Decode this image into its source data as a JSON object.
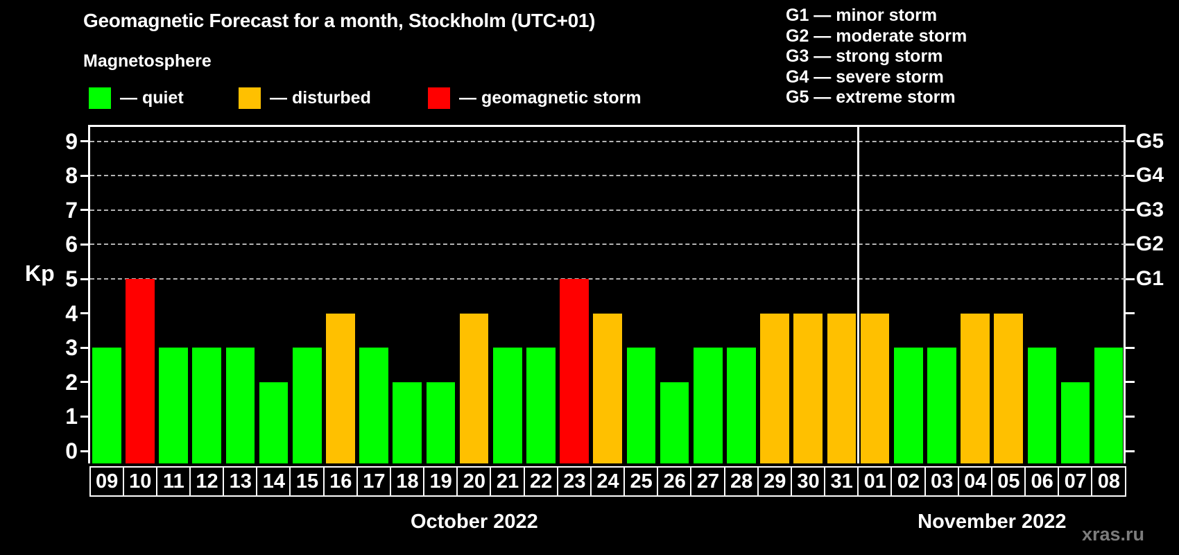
{
  "header": {
    "title": "Geomagnetic Forecast for a month, Stockholm (UTC+01)",
    "subtitle": "Magnetosphere"
  },
  "dash": "—",
  "status_legend": [
    {
      "label": "quiet",
      "status": "quiet",
      "color": "#00ff00"
    },
    {
      "label": "disturbed",
      "status": "disturbed",
      "color": "#ffc000"
    },
    {
      "label": "geomagnetic storm",
      "status": "storm",
      "color": "#ff0000"
    }
  ],
  "g_legend": [
    {
      "code": "G1",
      "label": "minor storm"
    },
    {
      "code": "G2",
      "label": "moderate storm"
    },
    {
      "code": "G3",
      "label": "strong storm"
    },
    {
      "code": "G4",
      "label": "severe storm"
    },
    {
      "code": "G5",
      "label": "extreme storm"
    }
  ],
  "watermark": "xras.ru",
  "chart_data": {
    "type": "bar",
    "title": "Geomagnetic Forecast for a month, Stockholm (UTC+01)",
    "ylabel": "Kp",
    "ylim": [
      0,
      9
    ],
    "yticks": [
      0,
      1,
      2,
      3,
      4,
      5,
      6,
      7,
      8,
      9
    ],
    "gridlines": [
      5,
      6,
      7,
      8,
      9
    ],
    "grid_style": "dashed",
    "legend_position": "top",
    "right_axis": [
      {
        "value": 5,
        "label": "G1"
      },
      {
        "value": 6,
        "label": "G2"
      },
      {
        "value": 7,
        "label": "G3"
      },
      {
        "value": 8,
        "label": "G4"
      },
      {
        "value": 9,
        "label": "G5"
      }
    ],
    "categories": [
      "09",
      "10",
      "11",
      "12",
      "13",
      "14",
      "15",
      "16",
      "17",
      "18",
      "19",
      "20",
      "21",
      "22",
      "23",
      "24",
      "25",
      "26",
      "27",
      "28",
      "29",
      "30",
      "31",
      "01",
      "02",
      "03",
      "04",
      "05",
      "06",
      "07",
      "08"
    ],
    "values": [
      3,
      5,
      3,
      3,
      3,
      2,
      3,
      4,
      3,
      2,
      2,
      4,
      3,
      3,
      5,
      4,
      3,
      2,
      3,
      3,
      4,
      4,
      4,
      4,
      3,
      3,
      4,
      4,
      3,
      2,
      3
    ],
    "statuses": [
      "quiet",
      "storm",
      "quiet",
      "quiet",
      "quiet",
      "quiet",
      "quiet",
      "disturbed",
      "quiet",
      "quiet",
      "quiet",
      "disturbed",
      "quiet",
      "quiet",
      "storm",
      "disturbed",
      "quiet",
      "quiet",
      "quiet",
      "quiet",
      "disturbed",
      "disturbed",
      "disturbed",
      "disturbed",
      "quiet",
      "quiet",
      "disturbed",
      "disturbed",
      "quiet",
      "quiet",
      "quiet"
    ],
    "colors": {
      "quiet": "#00ff00",
      "disturbed": "#ffc000",
      "storm": "#ff0000"
    },
    "months": [
      {
        "label": "October 2022",
        "days": 23
      },
      {
        "label": "November 2022",
        "days": 8
      }
    ],
    "month_separator_after_index": 22
  }
}
